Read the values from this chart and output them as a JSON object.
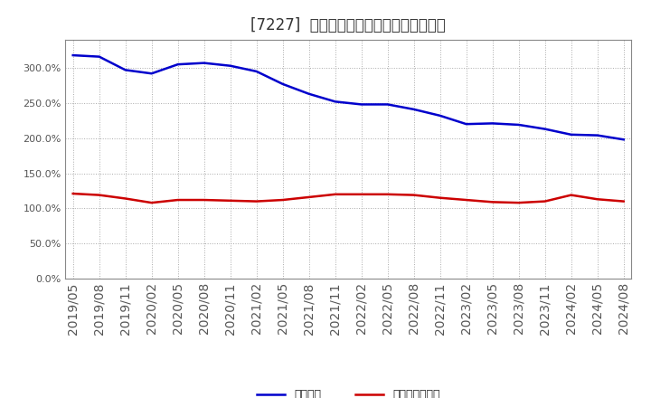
{
  "title": "[7227]  固定比率、固定長期適合率の推移",
  "x_labels": [
    "2019/05",
    "2019/08",
    "2019/11",
    "2020/02",
    "2020/05",
    "2020/08",
    "2020/11",
    "2021/02",
    "2021/05",
    "2021/08",
    "2021/11",
    "2022/02",
    "2022/05",
    "2022/08",
    "2022/11",
    "2023/02",
    "2023/05",
    "2023/08",
    "2023/11",
    "2024/02",
    "2024/05",
    "2024/08"
  ],
  "fixed_ratio": [
    318,
    316,
    297,
    292,
    305,
    307,
    303,
    295,
    277,
    263,
    252,
    248,
    248,
    241,
    232,
    220,
    221,
    219,
    213,
    205,
    204,
    198
  ],
  "long_term_ratio": [
    121,
    119,
    114,
    108,
    112,
    112,
    111,
    110,
    112,
    116,
    120,
    120,
    120,
    119,
    115,
    112,
    109,
    108,
    110,
    119,
    113,
    110
  ],
  "line1_color": "#0000cc",
  "line2_color": "#cc0000",
  "line1_label": "固定比率",
  "line2_label": "固定長期適合率",
  "ylim": [
    0,
    340
  ],
  "yticks": [
    0,
    50,
    100,
    150,
    200,
    250,
    300
  ],
  "background_color": "#ffffff",
  "grid_color": "#aaaaaa",
  "title_fontsize": 12
}
